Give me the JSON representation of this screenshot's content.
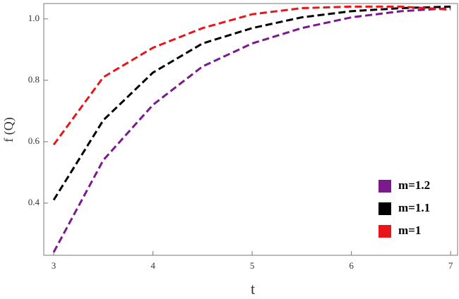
{
  "chart_data": {
    "type": "line",
    "x_label": "t",
    "y_label": "f (Q)",
    "x": [
      3,
      3.5,
      4,
      4.5,
      5,
      5.5,
      6,
      6.5,
      7
    ],
    "series": [
      {
        "name": "m=1.2",
        "color": "#7a1a8c",
        "values": [
          0.24,
          0.54,
          0.72,
          0.845,
          0.92,
          0.97,
          1.005,
          1.025,
          1.035
        ]
      },
      {
        "name": "m=1.1",
        "color": "#000000",
        "values": [
          0.41,
          0.67,
          0.825,
          0.92,
          0.97,
          1.005,
          1.025,
          1.035,
          1.04
        ]
      },
      {
        "name": "m=1",
        "color": "#e8161b",
        "values": [
          0.59,
          0.81,
          0.906,
          0.97,
          1.015,
          1.035,
          1.04,
          1.04,
          1.03
        ]
      }
    ],
    "xlim": [
      2.9,
      7.07
    ],
    "ylim": [
      0.23,
      1.05
    ],
    "xticks": [
      3,
      4,
      5,
      6,
      7
    ],
    "yticks": [
      0.4,
      0.6,
      0.8,
      {
        "value": 1.0,
        "label": "1.0"
      }
    ],
    "legend": "bottom-right",
    "dashed": true
  }
}
